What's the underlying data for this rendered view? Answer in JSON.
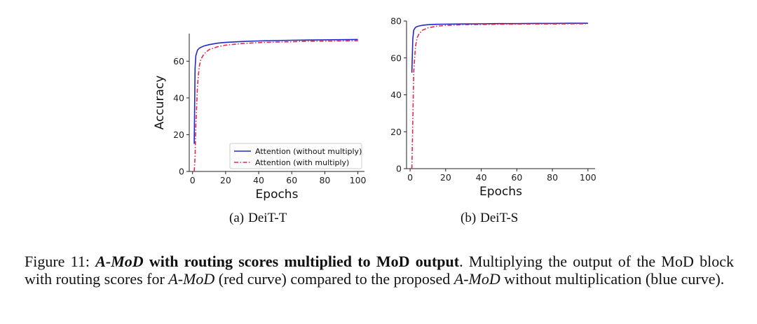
{
  "colors": {
    "blue": "#2128c8",
    "red": "#e3294f"
  },
  "chart_data": [
    {
      "id": "deit-t",
      "type": "line",
      "xlabel": "Epochs",
      "ylabel": "Accuracy",
      "xlim": [
        -2,
        104
      ],
      "ylim": [
        0,
        75
      ],
      "xticks": [
        0,
        20,
        40,
        60,
        80,
        100
      ],
      "yticks": [
        0,
        20,
        40,
        60
      ],
      "legend": "lower-right",
      "series": [
        {
          "name": "Attention (without multiply)",
          "style": "solid",
          "color": "#2128c8",
          "x": [
            1,
            1.5,
            2,
            3,
            4,
            5,
            7,
            10,
            15,
            20,
            30,
            40,
            50,
            60,
            70,
            80,
            90,
            100
          ],
          "y": [
            15,
            56,
            63,
            66,
            67,
            67.5,
            68.3,
            69,
            69.8,
            70.2,
            70.7,
            71.0,
            71.2,
            71.4,
            71.5,
            71.6,
            71.7,
            71.8
          ]
        },
        {
          "name": "Attention (with multiply)",
          "style": "dashdot",
          "color": "#e3294f",
          "x": [
            1,
            1.5,
            2,
            3,
            4,
            5,
            7,
            10,
            15,
            20,
            30,
            40,
            50,
            60,
            70,
            80,
            90,
            100
          ],
          "y": [
            0,
            8,
            25,
            47,
            57,
            61,
            64,
            66.3,
            67.8,
            68.7,
            69.6,
            70.1,
            70.4,
            70.6,
            70.8,
            70.9,
            71.0,
            71.1
          ]
        }
      ]
    },
    {
      "id": "deit-s",
      "type": "line",
      "xlabel": "Epochs",
      "ylabel": "",
      "xlim": [
        -2,
        104
      ],
      "ylim": [
        0,
        80
      ],
      "xticks": [
        0,
        20,
        40,
        60,
        80,
        100
      ],
      "yticks": [
        0,
        20,
        40,
        60,
        80
      ],
      "legend": "none",
      "series": [
        {
          "name": "Attention (without multiply)",
          "style": "solid",
          "color": "#2128c8",
          "x": [
            1,
            1.5,
            2,
            3,
            4,
            5,
            7,
            10,
            15,
            20,
            30,
            40,
            50,
            60,
            70,
            80,
            90,
            100
          ],
          "y": [
            52,
            70,
            75,
            76.5,
            77,
            77.3,
            77.7,
            78.0,
            78.2,
            78.3,
            78.4,
            78.5,
            78.6,
            78.6,
            78.7,
            78.7,
            78.8,
            78.8
          ]
        },
        {
          "name": "Attention (with multiply)",
          "style": "dashdot",
          "color": "#e3294f",
          "x": [
            1,
            1.5,
            2,
            3,
            4,
            5,
            7,
            10,
            15,
            20,
            30,
            40,
            50,
            60,
            70,
            80,
            90,
            100
          ],
          "y": [
            0,
            25,
            52,
            66,
            71,
            73,
            75,
            76.3,
            77.2,
            77.6,
            78.0,
            78.1,
            78.2,
            78.3,
            78.4,
            78.4,
            78.5,
            78.5
          ]
        }
      ]
    }
  ],
  "subcaptions": [
    {
      "label": "(a)",
      "text": "DeiT-T"
    },
    {
      "label": "(b)",
      "text": "DeiT-S"
    }
  ],
  "caption": {
    "prefix": "Figure 11: ",
    "bold_italic": "A-MoD",
    "bold": " with routing scores multiplied to MoD output",
    "part1": ". Multiplying the output of the MoD block with routing scores for ",
    "italic1": "A-MoD",
    "part2": " (red curve) compared to the proposed ",
    "italic2": "A-MoD",
    "part3": " without multiplication (blue curve)."
  }
}
